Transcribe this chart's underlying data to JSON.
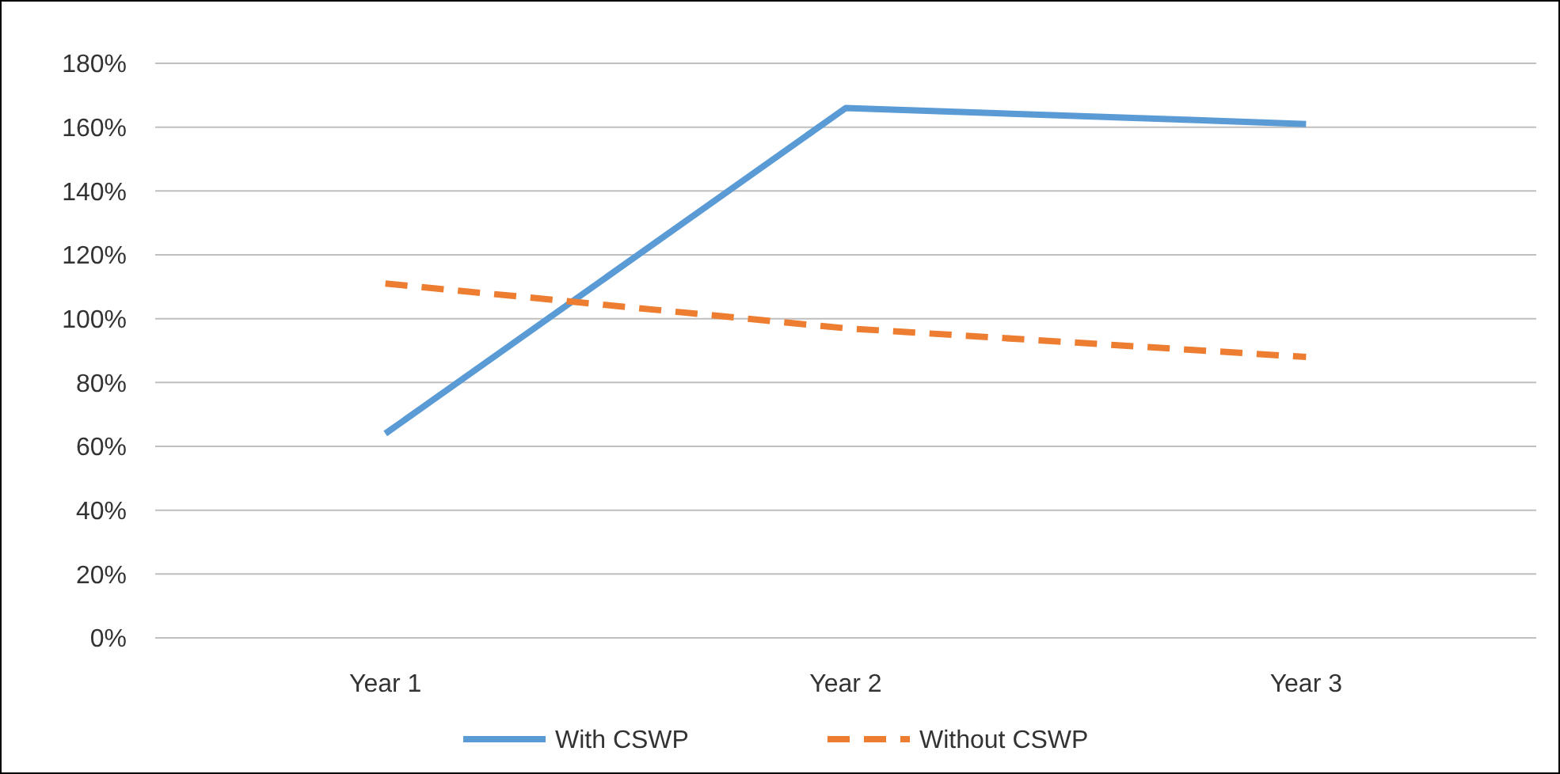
{
  "chart_data": {
    "type": "line",
    "categories": [
      "Year 1",
      "Year 2",
      "Year 3"
    ],
    "series": [
      {
        "name": "With CSWP",
        "color": "#5b9bd5",
        "values": [
          64,
          166,
          161
        ],
        "line_style": "solid"
      },
      {
        "name": "Without CSWP",
        "color": "#ed7d31",
        "values": [
          111,
          97,
          88
        ],
        "line_style": "dashed"
      }
    ],
    "ylim": [
      0,
      180
    ],
    "yticks": [
      {
        "value": 0,
        "label": "0%"
      },
      {
        "value": 20,
        "label": "20%"
      },
      {
        "value": 40,
        "label": "40%"
      },
      {
        "value": 60,
        "label": "60%"
      },
      {
        "value": 80,
        "label": "80%"
      },
      {
        "value": 100,
        "label": "100%"
      },
      {
        "value": 120,
        "label": "120%"
      },
      {
        "value": 140,
        "label": "140%"
      },
      {
        "value": 160,
        "label": "160%"
      },
      {
        "value": 180,
        "label": "180%"
      }
    ],
    "grid": "y",
    "legend": "bottom"
  }
}
